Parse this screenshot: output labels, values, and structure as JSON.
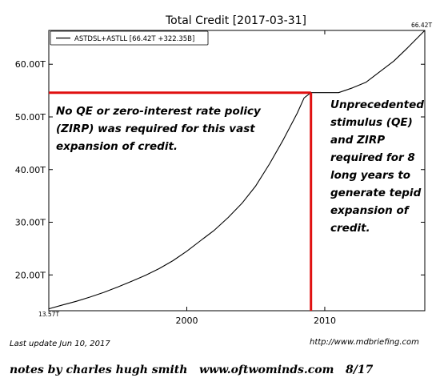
{
  "chart_data": {
    "type": "line",
    "title": "Total Credit  [2017-03-31]",
    "xlabel": "",
    "ylabel": "",
    "legend": {
      "label": "ASTDSL+ASTLL [66.42T +322.35B]",
      "placement": "top-left"
    },
    "xlim": [
      1990,
      2017.25
    ],
    "ylim": [
      13.2,
      66.42
    ],
    "x_ticks": [
      2000,
      2010
    ],
    "x_tick_labels": [
      "2000",
      "2010"
    ],
    "y_ticks": [
      20,
      30,
      40,
      50,
      60
    ],
    "y_tick_labels": [
      "20.00T",
      "30.00T",
      "40.00T",
      "50.00T",
      "60.00T"
    ],
    "start_label": "13.57T",
    "end_label": "66.42T",
    "grid": false,
    "series": [
      {
        "name": "ASTDSL+ASTLL",
        "color": "#000000",
        "x": [
          1990,
          1991,
          1992,
          1993,
          1994,
          1995,
          1996,
          1997,
          1998,
          1999,
          2000,
          2001,
          2002,
          2003,
          2004,
          2005,
          2006,
          2007,
          2008,
          2008.5,
          2009,
          2010,
          2011,
          2012,
          2013,
          2014,
          2015,
          2016,
          2017.25
        ],
        "y": [
          13.57,
          14.3,
          15.0,
          15.8,
          16.7,
          17.7,
          18.8,
          19.9,
          21.2,
          22.7,
          24.5,
          26.5,
          28.5,
          30.9,
          33.6,
          36.9,
          41.1,
          45.7,
          50.7,
          53.6,
          54.6,
          54.6,
          54.6,
          55.5,
          56.6,
          58.6,
          60.6,
          63.1,
          66.42
        ]
      }
    ],
    "annotations": {
      "color": "#e01010",
      "marker_x": 2009,
      "marker_y": 54.6,
      "left_text": [
        "No QE or zero-interest rate policy",
        "(ZIRP) was required for this vast",
        "expansion of credit."
      ],
      "right_text": [
        "Unprecedented",
        "stimulus (QE)",
        "and ZIRP",
        "required for 8",
        "long years to",
        "generate tepid",
        "expansion of",
        "credit."
      ]
    }
  },
  "footer": {
    "last_update": "Last update Jun 10, 2017",
    "source": "http://www.mdbriefing.com",
    "notes": "notes by charles hugh smith   www.oftwominds.com   8/17"
  }
}
